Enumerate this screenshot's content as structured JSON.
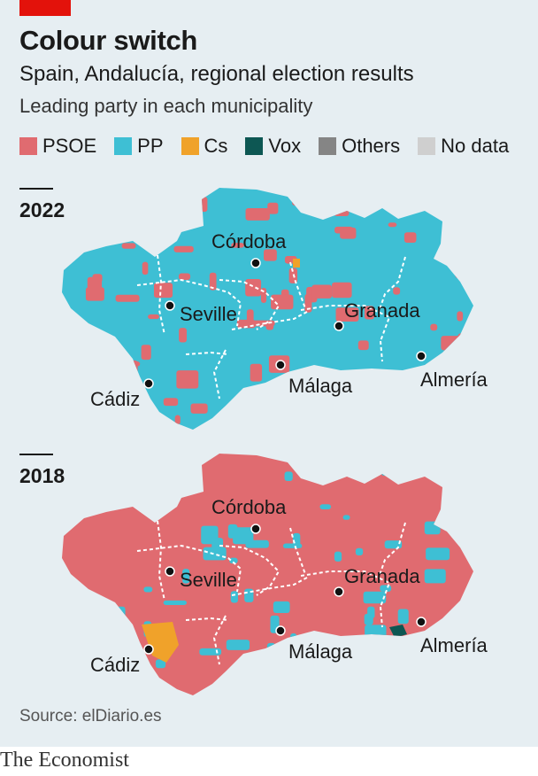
{
  "header": {
    "title": "Colour switch",
    "subtitle": "Spain, Andalucía, regional election results",
    "description": "Leading party in each municipality"
  },
  "legend": [
    {
      "label": "PSOE",
      "color": "#e06b70"
    },
    {
      "label": "PP",
      "color": "#3ebfd4"
    },
    {
      "label": "Cs",
      "color": "#f0a22a"
    },
    {
      "label": "Vox",
      "color": "#0d5753"
    },
    {
      "label": "Others",
      "color": "#858585"
    },
    {
      "label": "No data",
      "color": "#cfcfcf"
    }
  ],
  "maps": [
    {
      "year": "2022",
      "leading_party": "PP",
      "cities": [
        "Córdoba",
        "Seville",
        "Granada",
        "Cádiz",
        "Málaga",
        "Almería"
      ]
    },
    {
      "year": "2018",
      "leading_party": "PSOE",
      "cities": [
        "Córdoba",
        "Seville",
        "Granada",
        "Cádiz",
        "Málaga",
        "Almería"
      ]
    }
  ],
  "footer": {
    "source": "Source: elDiario.es",
    "brand": "The Economist"
  }
}
